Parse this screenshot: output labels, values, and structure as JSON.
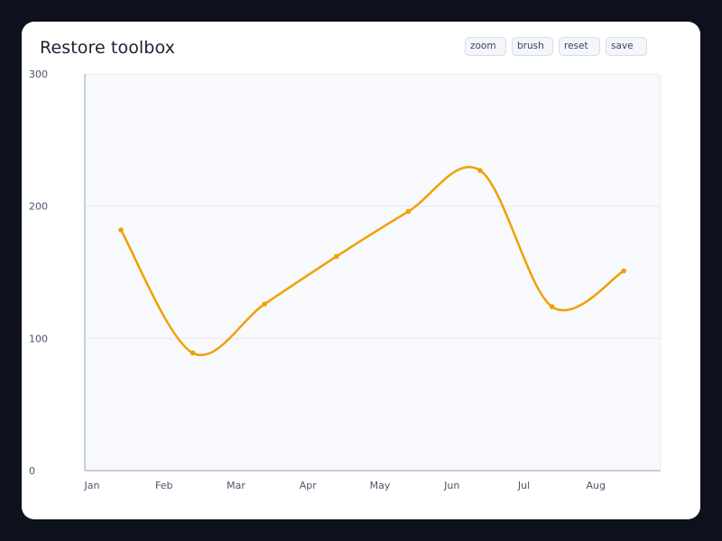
{
  "title": "Restore toolbox",
  "toolbox": {
    "zoom": "zoom",
    "brush": "brush",
    "reset": "reset",
    "save": "save"
  },
  "colors": {
    "line": "#f0a000",
    "plot_background": "#f8f9fc",
    "grid": "#e4e8ef",
    "axis": "#b4c0d2"
  },
  "chart_data": {
    "type": "line",
    "title": "Restore toolbox",
    "categories": [
      "Jan",
      "Feb",
      "Mar",
      "Apr",
      "May",
      "Jun",
      "Jul",
      "Aug"
    ],
    "series": [
      {
        "values": [
          182,
          89,
          126,
          162,
          196,
          227,
          124,
          151
        ]
      }
    ],
    "yticks": [
      "0",
      "100",
      "200",
      "300"
    ],
    "ylim": [
      0,
      300
    ],
    "smooth": true,
    "grid": true,
    "legend": "none"
  }
}
